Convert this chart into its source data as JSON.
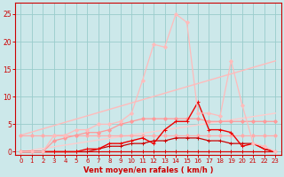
{
  "xlabel": "Vent moyen/en rafales ( km/h )",
  "background_color": "#cce8ea",
  "grid_color": "#99cccc",
  "x_ticks": [
    0,
    1,
    2,
    3,
    4,
    5,
    6,
    7,
    8,
    9,
    10,
    11,
    12,
    13,
    14,
    15,
    16,
    17,
    18,
    19,
    20,
    21,
    22,
    23
  ],
  "ylim": [
    -0.5,
    27
  ],
  "xlim": [
    -0.5,
    23.5
  ],
  "yticks": [
    0,
    5,
    10,
    15,
    20,
    25
  ],
  "series": [
    {
      "x": [
        0,
        1,
        2,
        3,
        4,
        5,
        6,
        7,
        8,
        9,
        10,
        11,
        12,
        13,
        14,
        15,
        16,
        17,
        18,
        19,
        20,
        21,
        22,
        23
      ],
      "y": [
        0,
        0,
        0,
        0,
        0,
        0,
        0,
        0,
        0,
        0,
        0,
        0,
        0,
        0,
        0,
        0,
        0,
        0,
        0,
        0,
        0,
        0,
        0,
        0
      ],
      "color": "#dd0000",
      "lw": 0.9,
      "marker": "+",
      "ms": 2.5
    },
    {
      "x": [
        0,
        23
      ],
      "y": [
        3,
        16.5
      ],
      "color": "#ffbbbb",
      "lw": 1.0,
      "marker": null,
      "ms": 0
    },
    {
      "x": [
        0,
        23
      ],
      "y": [
        0,
        7
      ],
      "color": "#ffcccc",
      "lw": 1.0,
      "marker": null,
      "ms": 0
    },
    {
      "x": [
        0,
        1,
        2,
        3,
        4,
        5,
        6,
        7,
        8,
        9,
        10,
        11,
        12,
        13,
        14,
        15,
        16,
        17,
        18,
        19,
        20,
        21,
        22,
        23
      ],
      "y": [
        3,
        3,
        3,
        3,
        3,
        3,
        3,
        3,
        3,
        3,
        3,
        3,
        3,
        3,
        3,
        3,
        3,
        3,
        3,
        3,
        3,
        3,
        3,
        3
      ],
      "color": "#ffaaaa",
      "lw": 0.9,
      "marker": "D",
      "ms": 2.0
    },
    {
      "x": [
        0,
        1,
        2,
        3,
        4,
        5,
        6,
        7,
        8,
        9,
        10,
        11,
        12,
        13,
        14,
        15,
        16,
        17,
        18,
        19,
        20,
        21,
        22,
        23
      ],
      "y": [
        0,
        0,
        0,
        2,
        2.5,
        3,
        3.5,
        3.5,
        4,
        5,
        5.5,
        6,
        6,
        6,
        6,
        6,
        6,
        5.5,
        5.5,
        5.5,
        5.5,
        5.5,
        5.5,
        5.5
      ],
      "color": "#ff9999",
      "lw": 0.9,
      "marker": "D",
      "ms": 2.0
    },
    {
      "x": [
        0,
        1,
        2,
        3,
        4,
        5,
        6,
        7,
        8,
        9,
        10,
        11,
        12,
        13,
        14,
        15,
        16,
        17,
        18,
        19,
        20,
        21,
        22,
        23
      ],
      "y": [
        0,
        0,
        0,
        0,
        0,
        0,
        0,
        0.5,
        1,
        1,
        1.5,
        1.5,
        2,
        2,
        2.5,
        2.5,
        2.5,
        2,
        2,
        1.5,
        1.5,
        1.5,
        0.5,
        0
      ],
      "color": "#cc0000",
      "lw": 0.9,
      "marker": "+",
      "ms": 2.5
    },
    {
      "x": [
        0,
        1,
        2,
        3,
        4,
        5,
        6,
        7,
        8,
        9,
        10,
        11,
        12,
        13,
        14,
        15,
        16,
        17,
        18,
        19,
        20,
        21,
        22,
        23
      ],
      "y": [
        0,
        0,
        0,
        0,
        0,
        0,
        0.5,
        0.5,
        1.5,
        1.5,
        2,
        2.5,
        1.5,
        4,
        5.5,
        5.5,
        9,
        4,
        4,
        3.5,
        1,
        1.5,
        0.5,
        0
      ],
      "color": "#ee0000",
      "lw": 1.0,
      "marker": "+",
      "ms": 2.5
    },
    {
      "x": [
        0,
        1,
        2,
        3,
        4,
        5,
        6,
        7,
        8,
        9,
        10,
        11,
        12,
        13,
        14,
        15,
        16,
        17,
        18,
        19,
        20,
        21,
        22,
        23
      ],
      "y": [
        0,
        0,
        0,
        3,
        3,
        4,
        4,
        5,
        5,
        5.5,
        7,
        13,
        19.5,
        19,
        25,
        23.5,
        7,
        7,
        6.5,
        16.5,
        8.5,
        1.5,
        1,
        0
      ],
      "color": "#ffbbbb",
      "lw": 0.9,
      "marker": "D",
      "ms": 2.0
    }
  ]
}
